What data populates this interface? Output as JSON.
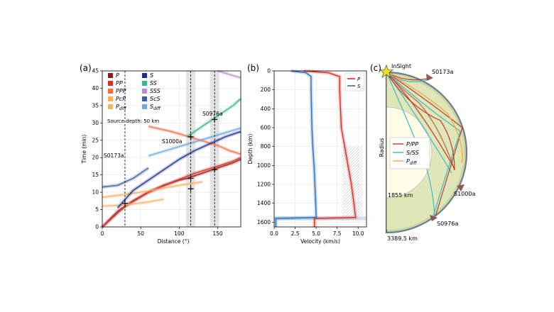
{
  "panels": {
    "a": "(a)",
    "b": "(b)",
    "c": "(c)"
  },
  "chart_data": [
    {
      "type": "line",
      "panel": "a",
      "xlabel": "Distance (°)",
      "ylabel": "Time (min)",
      "xlim": [
        0,
        180
      ],
      "ylim": [
        0,
        45
      ],
      "xticks": [
        0,
        50,
        100,
        150
      ],
      "yticks": [
        0,
        5,
        10,
        15,
        20,
        25,
        30,
        35,
        40,
        45
      ],
      "annotation": "Source depth: 50 km",
      "legend_position": "top-left",
      "legend": [
        {
          "label": "P",
          "color": "#8b1a1a"
        },
        {
          "label": "PP",
          "color": "#d73027"
        },
        {
          "label": "PPP",
          "color": "#f46d43"
        },
        {
          "label": "PcP",
          "color": "#fdae61"
        },
        {
          "label": "P",
          "sub": "diff",
          "color": "#f4b26a"
        },
        {
          "label": "S",
          "color": "#1f2e8c"
        },
        {
          "label": "SS",
          "color": "#3bb58f"
        },
        {
          "label": "SSS",
          "color": "#c08ccf"
        },
        {
          "label": "ScS",
          "color": "#3a5fa0"
        },
        {
          "label": "S",
          "sub": "diff",
          "color": "#6fa8dc"
        }
      ],
      "series": [
        {
          "name": "P",
          "color": "#8b1a1a",
          "x": [
            0,
            20,
            40,
            60,
            80,
            100,
            110,
            130,
            150,
            170,
            180
          ],
          "y": [
            0,
            4.5,
            7.5,
            10,
            12,
            13.5,
            14,
            15.5,
            17,
            18.5,
            19.5
          ]
        },
        {
          "name": "PP",
          "color": "#d73027",
          "x": [
            0,
            30,
            60,
            90,
            120,
            150,
            170,
            180
          ],
          "y": [
            0,
            6,
            10,
            12.8,
            15.5,
            17.5,
            19,
            20
          ]
        },
        {
          "name": "PPP",
          "color": "#f46d43",
          "x": [
            60,
            90,
            120,
            150,
            165,
            180
          ],
          "y": [
            29,
            27.5,
            25.5,
            23.5,
            22,
            21
          ]
        },
        {
          "name": "PcP",
          "color": "#fdae61",
          "x": [
            0,
            50,
            100,
            130
          ],
          "y": [
            8.5,
            10,
            12,
            13
          ]
        },
        {
          "name": "Pdiff",
          "color": "#f4b26a",
          "x": [
            0,
            20,
            40,
            60,
            80
          ],
          "y": [
            6,
            6.2,
            6.6,
            7.2,
            8
          ]
        },
        {
          "name": "S",
          "color": "#1f2e8c",
          "x": [
            20,
            40,
            60,
            80,
            100,
            120,
            140,
            160,
            180
          ],
          "y": [
            5.5,
            10.5,
            13.5,
            16.5,
            19.5,
            22,
            24,
            26,
            27.5
          ]
        },
        {
          "name": "SS",
          "color": "#3bb58f",
          "x": [
            110,
            130,
            150,
            170,
            180
          ],
          "y": [
            26,
            29,
            32,
            35,
            37
          ]
        },
        {
          "name": "SSS",
          "color": "#c08ccf",
          "x": [
            150,
            165,
            180
          ],
          "y": [
            45,
            44,
            43
          ]
        },
        {
          "name": "ScS",
          "color": "#3a5fa0",
          "x": [
            0,
            20,
            40,
            60
          ],
          "y": [
            11.5,
            12,
            14,
            17
          ]
        },
        {
          "name": "Sdiff",
          "color": "#6fa8dc",
          "x": [
            60,
            90,
            120,
            150,
            180
          ],
          "y": [
            20.5,
            22.5,
            24.5,
            26.5,
            28.5
          ]
        }
      ],
      "events": [
        {
          "name": "S0173a",
          "distance": 29.5,
          "picks": [
            6.8
          ]
        },
        {
          "name": "S1000a",
          "distance": 115,
          "picks": [
            11,
            14,
            26
          ]
        },
        {
          "name": "S0976a",
          "distance": 146,
          "picks": [
            16.5,
            31
          ]
        }
      ]
    },
    {
      "type": "line",
      "panel": "b",
      "xlabel": "Velocity (km/s)",
      "ylabel": "Depth (km)",
      "xlim": [
        0,
        11
      ],
      "ylim": [
        1650,
        0
      ],
      "xticks": [
        0.0,
        2.5,
        5.0,
        7.5,
        10.0
      ],
      "xtick_labels": [
        "0.0",
        "2.5",
        "5.0",
        "7.5",
        "10.0"
      ],
      "yticks": [
        0,
        200,
        400,
        600,
        800,
        1000,
        1200,
        1400,
        1600
      ],
      "legend_position": "top-right",
      "series": [
        {
          "name": "P",
          "color": "#d73027",
          "depth": [
            0,
            20,
            60,
            100,
            200,
            400,
            600,
            800,
            1000,
            1200,
            1400,
            1550,
            1560,
            1650
          ],
          "velocity": [
            3.5,
            6.5,
            7.8,
            7.8,
            7.8,
            7.9,
            8.0,
            8.4,
            8.8,
            9.2,
            9.5,
            9.7,
            4.8,
            4.8
          ]
        },
        {
          "name": "S",
          "color": "#2f6fb5",
          "depth": [
            0,
            20,
            60,
            100,
            200,
            400,
            600,
            800,
            1000,
            1200,
            1400,
            1550,
            1560,
            1650
          ],
          "velocity": [
            2.0,
            3.8,
            4.4,
            4.4,
            4.4,
            4.45,
            4.5,
            4.6,
            4.75,
            4.85,
            4.95,
            5.0,
            0.2,
            0.2
          ]
        }
      ]
    }
  ],
  "diagram": {
    "station": "InSight",
    "axis_label": "Radius",
    "core_radius": "1855 km",
    "surface_radius": "3389.5 km",
    "events": [
      "S0173a",
      "S1000a",
      "S0976a"
    ],
    "legend": [
      {
        "label": "P/PP",
        "color": "#d73027"
      },
      {
        "label": "S/SS",
        "color": "#3fb6c9"
      },
      {
        "label": "P",
        "sub": "diff",
        "color": "#f4a340"
      }
    ]
  }
}
